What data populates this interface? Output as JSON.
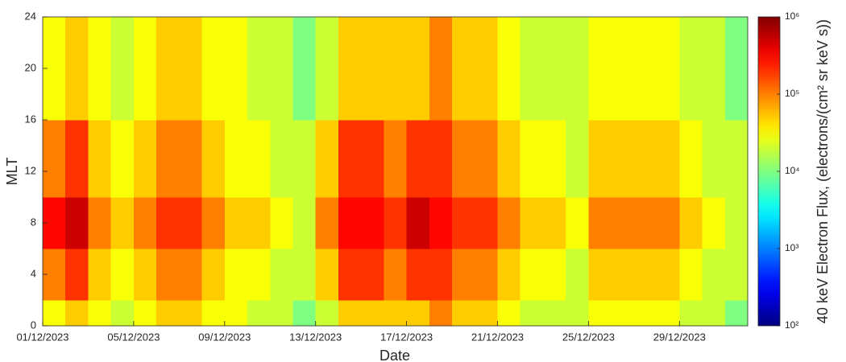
{
  "chart_data": {
    "type": "heatmap",
    "xlabel": "Date",
    "ylabel": "MLT",
    "colorbar_label": "40 keV Electron Flux, (electrons/(cm² sr keV s))",
    "colormap": "jet",
    "color_scale": "log",
    "x": [
      "2023-12-01",
      "2023-12-02",
      "2023-12-03",
      "2023-12-04",
      "2023-12-05",
      "2023-12-06",
      "2023-12-07",
      "2023-12-08",
      "2023-12-09",
      "2023-12-10",
      "2023-12-11",
      "2023-12-12",
      "2023-12-13",
      "2023-12-14",
      "2023-12-15",
      "2023-12-16",
      "2023-12-17",
      "2023-12-18",
      "2023-12-19",
      "2023-12-20",
      "2023-12-21",
      "2023-12-22",
      "2023-12-23",
      "2023-12-24",
      "2023-12-25",
      "2023-12-26",
      "2023-12-27",
      "2023-12-28",
      "2023-12-29",
      "2023-12-30",
      "2023-12-31"
    ],
    "xlim": [
      "2023-12-01",
      "2024-01-01"
    ],
    "xticks": [
      {
        "value": "2023-12-01",
        "label": "01/12/2023"
      },
      {
        "value": "2023-12-05",
        "label": "05/12/2023"
      },
      {
        "value": "2023-12-09",
        "label": "09/12/2023"
      },
      {
        "value": "2023-12-13",
        "label": "13/12/2023"
      },
      {
        "value": "2023-12-17",
        "label": "17/12/2023"
      },
      {
        "value": "2023-12-21",
        "label": "21/12/2023"
      },
      {
        "value": "2023-12-25",
        "label": "25/12/2023"
      },
      {
        "value": "2023-12-29",
        "label": "29/12/2023"
      }
    ],
    "y_bins": [
      0,
      2,
      4,
      6,
      8,
      10,
      12,
      14,
      16,
      18,
      20,
      22,
      24
    ],
    "ylim": [
      0,
      24
    ],
    "yticks": [
      0,
      4,
      8,
      12,
      16,
      20,
      24
    ],
    "zlim": [
      100,
      1000000
    ],
    "zticks": [
      {
        "value": 100,
        "label": "10²"
      },
      {
        "value": 1000,
        "label": "10³"
      },
      {
        "value": 10000,
        "label": "10⁴"
      },
      {
        "value": 100000,
        "label": "10⁵"
      },
      {
        "value": 1000000,
        "label": "10⁶"
      }
    ],
    "z": [
      [
        30000,
        50000,
        30000,
        20000,
        30000,
        50000,
        50000,
        30000,
        30000,
        20000,
        20000,
        10000,
        20000,
        50000,
        50000,
        50000,
        50000,
        100000,
        50000,
        50000,
        30000,
        20000,
        20000,
        20000,
        30000,
        30000,
        30000,
        30000,
        20000,
        20000,
        10000
      ],
      [
        100000,
        200000,
        50000,
        30000,
        50000,
        100000,
        100000,
        50000,
        30000,
        30000,
        20000,
        20000,
        50000,
        200000,
        200000,
        100000,
        200000,
        200000,
        100000,
        100000,
        50000,
        30000,
        30000,
        20000,
        50000,
        50000,
        50000,
        50000,
        30000,
        20000,
        20000
      ],
      [
        100000,
        200000,
        50000,
        30000,
        50000,
        100000,
        100000,
        50000,
        30000,
        30000,
        20000,
        20000,
        50000,
        200000,
        200000,
        100000,
        200000,
        200000,
        100000,
        100000,
        50000,
        30000,
        30000,
        20000,
        50000,
        50000,
        50000,
        50000,
        30000,
        20000,
        20000
      ],
      [
        300000,
        500000,
        100000,
        50000,
        100000,
        200000,
        200000,
        100000,
        50000,
        50000,
        30000,
        20000,
        100000,
        300000,
        300000,
        200000,
        500000,
        300000,
        200000,
        200000,
        100000,
        50000,
        50000,
        30000,
        100000,
        100000,
        100000,
        100000,
        50000,
        30000,
        20000
      ],
      [
        300000,
        500000,
        100000,
        50000,
        100000,
        200000,
        200000,
        100000,
        50000,
        50000,
        30000,
        20000,
        100000,
        300000,
        300000,
        200000,
        500000,
        300000,
        200000,
        200000,
        100000,
        50000,
        50000,
        30000,
        100000,
        100000,
        100000,
        100000,
        50000,
        30000,
        20000
      ],
      [
        100000,
        200000,
        50000,
        30000,
        50000,
        100000,
        100000,
        50000,
        30000,
        30000,
        20000,
        20000,
        50000,
        200000,
        200000,
        100000,
        200000,
        200000,
        100000,
        100000,
        50000,
        30000,
        30000,
        20000,
        50000,
        50000,
        50000,
        50000,
        30000,
        20000,
        20000
      ],
      [
        100000,
        200000,
        50000,
        30000,
        50000,
        100000,
        100000,
        50000,
        30000,
        30000,
        20000,
        20000,
        50000,
        200000,
        200000,
        100000,
        200000,
        200000,
        100000,
        100000,
        50000,
        30000,
        30000,
        20000,
        50000,
        50000,
        50000,
        50000,
        30000,
        20000,
        20000
      ],
      [
        100000,
        200000,
        50000,
        30000,
        50000,
        100000,
        100000,
        50000,
        30000,
        30000,
        20000,
        20000,
        50000,
        200000,
        200000,
        100000,
        200000,
        200000,
        100000,
        100000,
        50000,
        30000,
        30000,
        20000,
        50000,
        50000,
        50000,
        50000,
        30000,
        20000,
        20000
      ],
      [
        30000,
        50000,
        30000,
        20000,
        30000,
        50000,
        50000,
        30000,
        30000,
        20000,
        20000,
        10000,
        20000,
        50000,
        50000,
        50000,
        50000,
        100000,
        50000,
        50000,
        30000,
        20000,
        20000,
        20000,
        30000,
        30000,
        30000,
        30000,
        20000,
        20000,
        10000
      ],
      [
        30000,
        50000,
        30000,
        20000,
        30000,
        50000,
        50000,
        30000,
        30000,
        20000,
        20000,
        10000,
        20000,
        50000,
        50000,
        50000,
        50000,
        100000,
        50000,
        50000,
        30000,
        20000,
        20000,
        20000,
        30000,
        30000,
        30000,
        30000,
        20000,
        20000,
        10000
      ],
      [
        30000,
        50000,
        30000,
        20000,
        30000,
        50000,
        50000,
        30000,
        30000,
        20000,
        20000,
        10000,
        20000,
        50000,
        50000,
        50000,
        50000,
        100000,
        50000,
        50000,
        30000,
        20000,
        20000,
        20000,
        30000,
        30000,
        30000,
        30000,
        20000,
        20000,
        10000
      ],
      [
        30000,
        50000,
        30000,
        20000,
        30000,
        50000,
        50000,
        30000,
        30000,
        20000,
        20000,
        10000,
        20000,
        50000,
        50000,
        50000,
        50000,
        100000,
        50000,
        50000,
        30000,
        20000,
        20000,
        20000,
        30000,
        30000,
        30000,
        30000,
        20000,
        20000,
        10000
      ]
    ]
  }
}
